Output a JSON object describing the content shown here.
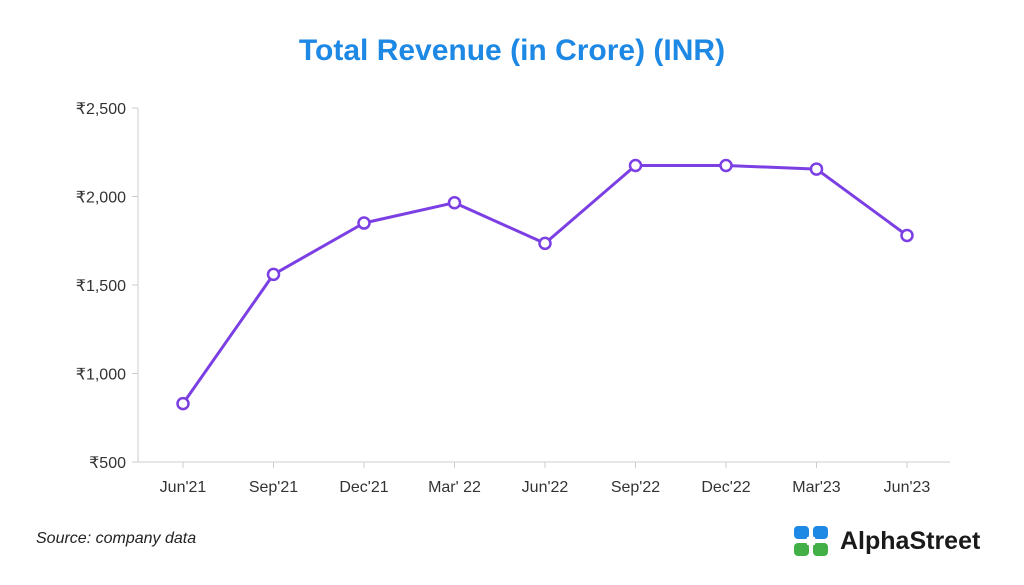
{
  "title": "Total Revenue (in Crore) (INR)",
  "source": "Source: company data",
  "brand": {
    "name": "AlphaStreet",
    "colors": [
      "#1e88e5",
      "#43b047"
    ]
  },
  "colors": {
    "title": "#1e88e5",
    "line": "#7b3fe4",
    "axis": "#cccccc"
  },
  "chart_data": {
    "type": "line",
    "title": "Total Revenue (in Crore) (INR)",
    "xlabel": "",
    "ylabel": "",
    "categories": [
      "Jun'21",
      "Sep'21",
      "Dec'21",
      "Mar' 22",
      "Jun'22",
      "Sep'22",
      "Dec'22",
      "Mar'23",
      "Jun'23"
    ],
    "series": [
      {
        "name": "Total Revenue",
        "values": [
          830,
          1560,
          1850,
          1965,
          1735,
          2175,
          2175,
          2155,
          1780
        ]
      }
    ],
    "ylim": [
      500,
      2500
    ],
    "yticks": [
      500,
      1000,
      1500,
      2000,
      2500
    ],
    "ytick_labels": [
      "₹500",
      "₹1,000",
      "₹1,500",
      "₹2,000",
      "₹2,500"
    ],
    "grid": false,
    "markers": "hollow-circle"
  }
}
